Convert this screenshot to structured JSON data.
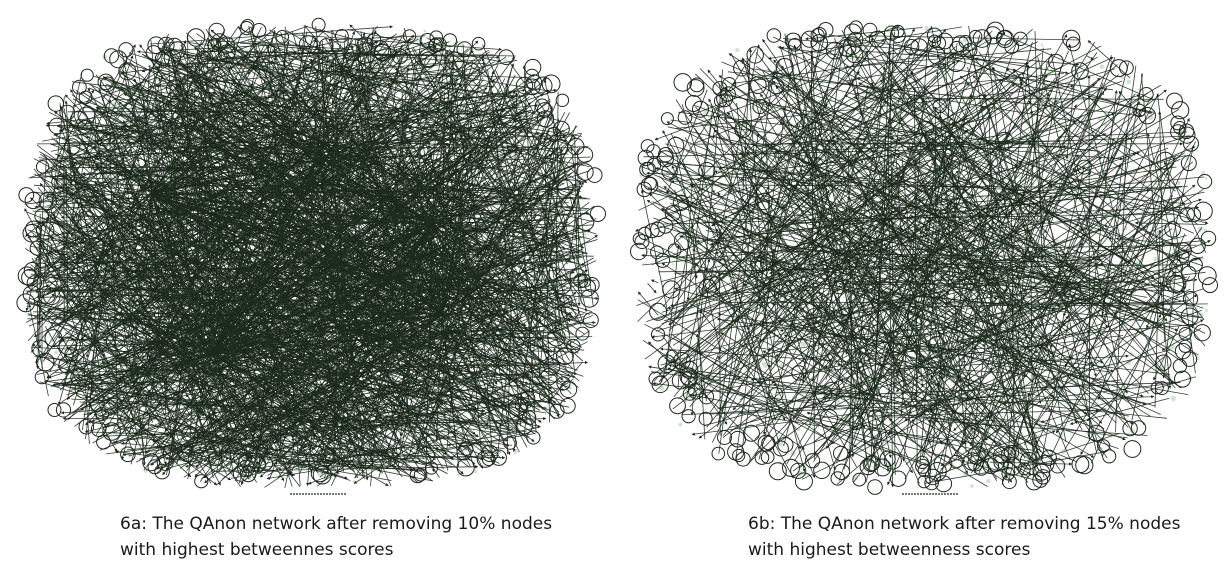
{
  "panels": [
    {
      "id": "6a",
      "caption_line1": "6a: The QAnon network after removing 10% nodes",
      "caption_line2": "with highest betweennes scores",
      "removed_percent": 10,
      "edge_density": "high"
    },
    {
      "id": "6b",
      "caption_line1": "6b: The QAnon network after removing 15% nodes",
      "caption_line2": "with highest betweenness scores",
      "removed_percent": 15,
      "edge_density": "medium"
    }
  ],
  "colors": {
    "edge": "#1c2a1c",
    "node_ring": "#1c2a1c",
    "faint_node": "#cfe3cf",
    "background": "#ffffff"
  }
}
